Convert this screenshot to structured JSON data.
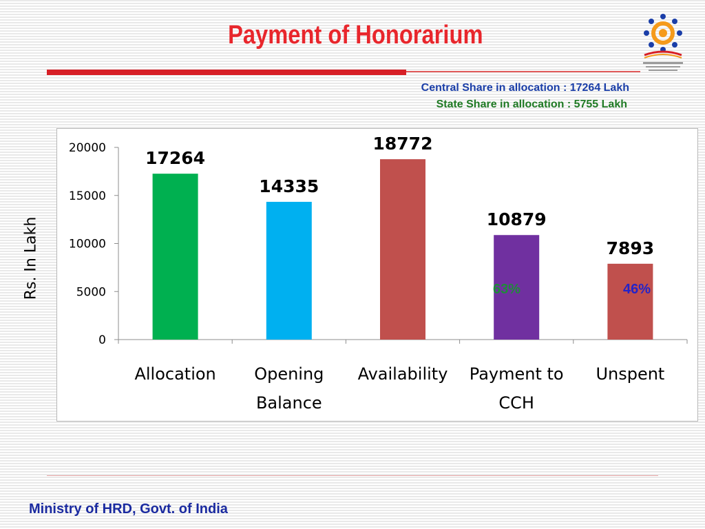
{
  "slide": {
    "title": "Payment of Honorarium",
    "notes": [
      "Central Share in allocation : 17264 Lakh",
      "State Share in allocation :  5755 Lakh"
    ],
    "footer": "Ministry of HRD, Govt. of India",
    "logo_icon": "mid-day-meal-scheme-logo",
    "colors": {
      "title": "#e8262c",
      "note1": "#1a3ea8",
      "note2": "#1f7a24",
      "footer": "#1a2aa0"
    }
  },
  "chart_data": {
    "type": "bar",
    "categories": [
      "Allocation",
      "Opening Balance",
      "Availability",
      "Payment to CCH",
      "Unspent"
    ],
    "category_lines": [
      [
        "Allocation"
      ],
      [
        "Opening",
        "Balance"
      ],
      [
        "Availability"
      ],
      [
        "Payment to",
        "CCH"
      ],
      [
        "Unspent"
      ]
    ],
    "values": [
      17264,
      14335,
      18772,
      10879,
      7893
    ],
    "colors": [
      "#00b050",
      "#00b0f0",
      "#c0504d",
      "#7030a0",
      "#c0504d"
    ],
    "ylabel": "Rs. In Lakh",
    "ylim": [
      0,
      20000
    ],
    "yticks": [
      0,
      5000,
      10000,
      15000,
      20000
    ],
    "percent_labels": [
      "63%",
      "46%"
    ],
    "grid": false
  }
}
